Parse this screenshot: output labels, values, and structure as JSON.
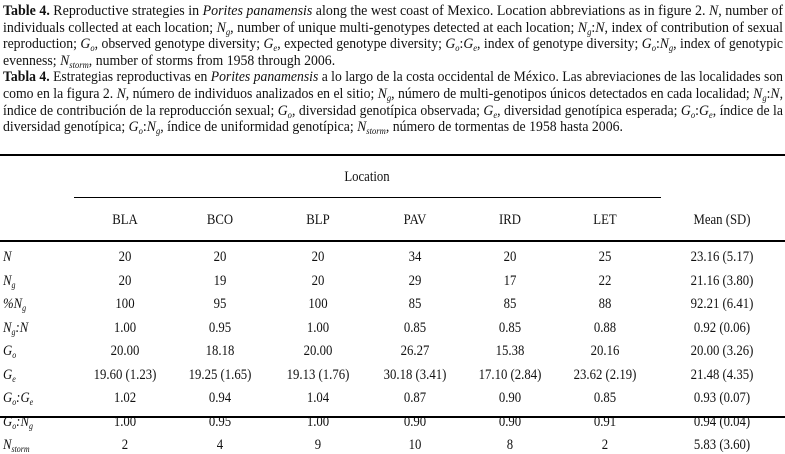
{
  "caption_en": [
    [
      {
        "t": "Table 4.",
        "s": "b"
      },
      {
        "t": " Reproductive strategies in "
      },
      {
        "t": "Porites panamensis",
        "s": "i"
      },
      {
        "t": " along the west coast of Mexico. Location abbreviations as in figure 2. "
      },
      {
        "t": "N",
        "s": "i"
      },
      {
        "t": ", number of"
      }
    ],
    [
      {
        "t": "individuals collected at each location; "
      },
      {
        "t": "N",
        "s": "i",
        "sub": "g"
      },
      {
        "t": ", number of unique multi-genotypes detected at each location; "
      },
      {
        "t": "N",
        "s": "i",
        "sub": "g"
      },
      {
        "t": ":"
      },
      {
        "t": "N",
        "s": "i"
      },
      {
        "t": ", index of contribution of sexual"
      }
    ],
    [
      {
        "t": "reproduction; "
      },
      {
        "t": "G",
        "s": "i",
        "sub": "o"
      },
      {
        "t": ", observed genotype diversity; "
      },
      {
        "t": "G",
        "s": "i",
        "sub": "e"
      },
      {
        "t": ", expected genotype diversity; "
      },
      {
        "t": "G",
        "s": "i",
        "sub": "o"
      },
      {
        "t": ":"
      },
      {
        "t": "G",
        "s": "i",
        "sub": "e"
      },
      {
        "t": ", index of genotype diversity; "
      },
      {
        "t": "G",
        "s": "i",
        "sub": "o"
      },
      {
        "t": ":"
      },
      {
        "t": "N",
        "s": "i",
        "sub": "g"
      },
      {
        "t": ", index of genotypic"
      }
    ],
    [
      {
        "t": "evenness; "
      },
      {
        "t": "N",
        "s": "i",
        "sub": "storm"
      },
      {
        "t": ", number of storms from 1958 through 2006."
      }
    ]
  ],
  "caption_es": [
    [
      {
        "t": "Tabla 4.",
        "s": "b"
      },
      {
        "t": " Estrategias reproductivas en "
      },
      {
        "t": "Porites panamensis",
        "s": "i"
      },
      {
        "t": " a lo largo de la costa occidental de México. Las abreviaciones de las localidades son"
      }
    ],
    [
      {
        "t": "como en la figura 2. "
      },
      {
        "t": "N",
        "s": "i"
      },
      {
        "t": ", número de individuos analizados en el sitio; "
      },
      {
        "t": "N",
        "s": "i",
        "sub": "g"
      },
      {
        "t": ", número de multi-genotipos únicos detectados en cada localidad; "
      },
      {
        "t": "N",
        "s": "i",
        "sub": "g"
      },
      {
        "t": ":"
      },
      {
        "t": "N",
        "s": "i"
      },
      {
        "t": ","
      }
    ],
    [
      {
        "t": "índice de contribución de la reproducción sexual; "
      },
      {
        "t": "G",
        "s": "i",
        "sub": "o"
      },
      {
        "t": ", diversidad genotípica observada; "
      },
      {
        "t": "G",
        "s": "i",
        "sub": "e"
      },
      {
        "t": ", diversidad genotípica esperada; "
      },
      {
        "t": "G",
        "s": "i",
        "sub": "o"
      },
      {
        "t": ":"
      },
      {
        "t": "G",
        "s": "i",
        "sub": "e"
      },
      {
        "t": ", índice de la"
      }
    ],
    [
      {
        "t": "diversidad genotípica; "
      },
      {
        "t": "G",
        "s": "i",
        "sub": "o"
      },
      {
        "t": ":"
      },
      {
        "t": "N",
        "s": "i",
        "sub": "g"
      },
      {
        "t": ", índice de uniformidad genotípica; "
      },
      {
        "t": "N",
        "s": "i",
        "sub": "storm"
      },
      {
        "t": ", número de tormentas de 1958 hasta 2006."
      }
    ]
  ],
  "table": {
    "group_header": "Location",
    "columns": [
      "BLA",
      "BCO",
      "BLP",
      "PAV",
      "IRD",
      "LET",
      "Mean (SD)"
    ],
    "rows": [
      {
        "label": [
          {
            "t": "N"
          }
        ],
        "values": [
          "20",
          "20",
          "20",
          "34",
          "20",
          "25",
          "23.16 (5.17)"
        ]
      },
      {
        "label": [
          {
            "t": "N",
            "sub": "g"
          }
        ],
        "values": [
          "20",
          "19",
          "20",
          "29",
          "17",
          "22",
          "21.16 (3.80)"
        ]
      },
      {
        "label": [
          {
            "t": "%"
          },
          {
            "t": "N",
            "sub": "g"
          }
        ],
        "values": [
          "100",
          "95",
          "100",
          "85",
          "85",
          "88",
          "92.21 (6.41)"
        ]
      },
      {
        "label": [
          {
            "t": "N",
            "sub": "g"
          },
          {
            "t": ":N"
          }
        ],
        "values": [
          "1.00",
          "0.95",
          "1.00",
          "0.85",
          "0.85",
          "0.88",
          "0.92 (0.06)"
        ]
      },
      {
        "label": [
          {
            "t": "G",
            "sub": "o"
          }
        ],
        "values": [
          "20.00",
          "18.18",
          "20.00",
          "26.27",
          "15.38",
          "20.16",
          "20.00 (3.26)"
        ]
      },
      {
        "label": [
          {
            "t": "G",
            "sub": "e"
          }
        ],
        "values": [
          "19.60 (1.23)",
          "19.25 (1.65)",
          "19.13 (1.76)",
          "30.18 (3.41)",
          "17.10 (2.84)",
          "23.62 (2.19)",
          "21.48 (4.35)"
        ]
      },
      {
        "label": [
          {
            "t": "G",
            "sub": "o"
          },
          {
            "t": ":"
          },
          {
            "t": "G",
            "sub": "e"
          }
        ],
        "values": [
          "1.02",
          "0.94",
          "1.04",
          "0.87",
          "0.90",
          "0.85",
          "0.93 (0.07)"
        ]
      },
      {
        "label": [
          {
            "t": "G",
            "sub": "o"
          },
          {
            "t": ":"
          },
          {
            "t": "N",
            "sub": "g"
          }
        ],
        "values": [
          "1.00",
          "0.95",
          "1.00",
          "0.90",
          "0.90",
          "0.91",
          "0.94 (0.04)"
        ]
      },
      {
        "label": [
          {
            "t": "N",
            "sub": "storm"
          }
        ],
        "values": [
          "2",
          "4",
          "9",
          "10",
          "8",
          "2",
          "5.83 (3.60)"
        ]
      }
    ]
  }
}
